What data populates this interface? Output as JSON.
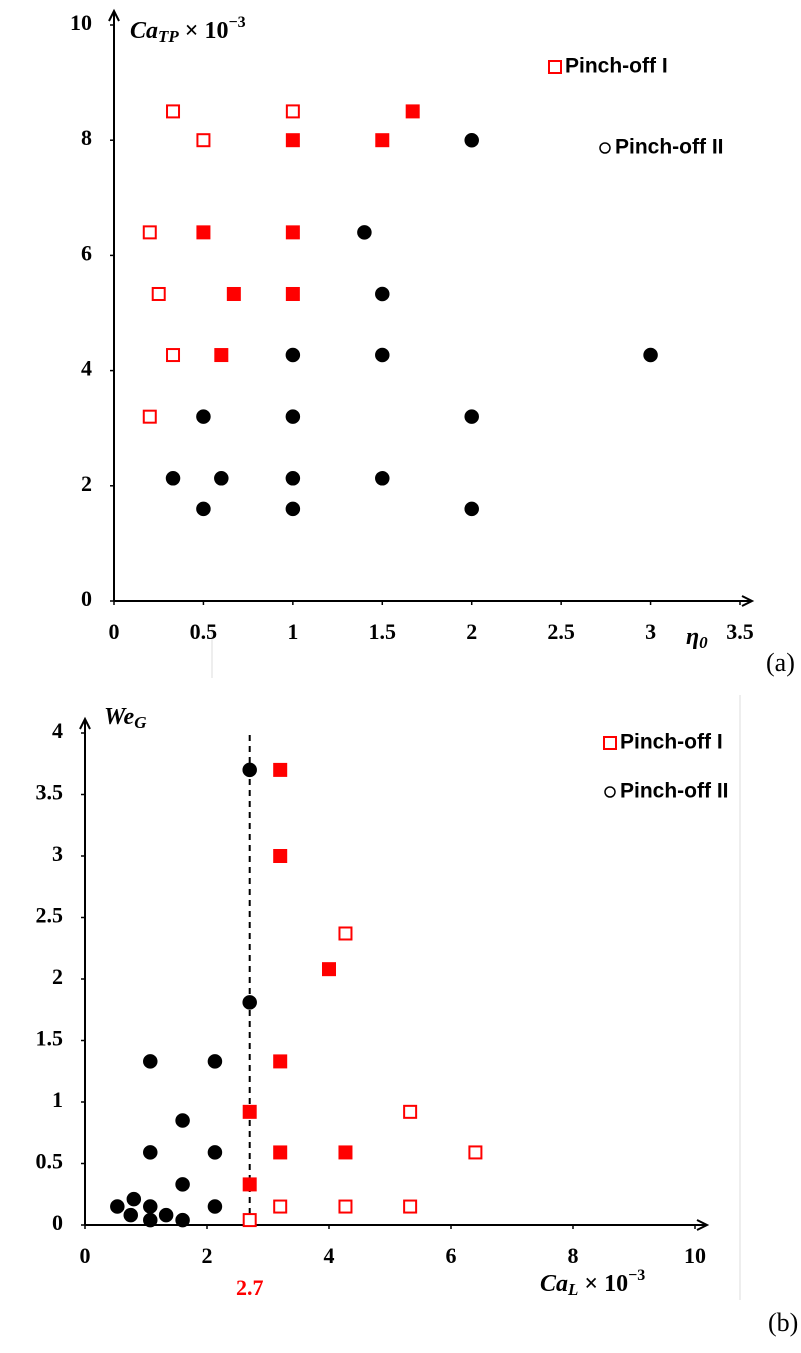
{
  "chart_data": [
    {
      "type": "scatter",
      "panel_label": "(a)",
      "ylabel": {
        "main": "Ca",
        "sub": "TP",
        "times": "× 10",
        "sup": "−3"
      },
      "xlabel": {
        "main": "η",
        "sub": "0"
      },
      "xlim": [
        0,
        3.5
      ],
      "ylim": [
        0,
        10
      ],
      "xticks": [
        0,
        0.5,
        1,
        1.5,
        2,
        2.5,
        3,
        3.5
      ],
      "yticks": [
        0,
        2,
        4,
        6,
        8,
        10
      ],
      "legend": "upper right",
      "series": [
        {
          "name": "Pinch-off I",
          "color": "#ff0000",
          "marker": "square",
          "x": [
            0.33,
            1,
            0.5,
            0.2,
            0.25,
            0.33,
            0.2,
            1.67,
            1,
            1.5,
            0.5,
            1,
            0.67,
            1,
            0.6
          ],
          "values": [
            8.5,
            8.5,
            8,
            6.4,
            5.33,
            4.27,
            3.2,
            8.5,
            8,
            8,
            6.4,
            6.4,
            5.33,
            5.33,
            4.27
          ],
          "filled": [
            false,
            false,
            false,
            false,
            false,
            false,
            false,
            true,
            true,
            true,
            true,
            true,
            true,
            true,
            true
          ]
        },
        {
          "name": "Pinch-off II",
          "color": "#000000",
          "marker": "circle",
          "x": [
            2,
            1.4,
            1.5,
            1,
            1.5,
            3,
            0.5,
            1,
            2,
            0.33,
            0.6,
            1,
            1.5,
            0.5,
            1,
            2
          ],
          "values": [
            8,
            6.4,
            5.33,
            4.27,
            4.27,
            4.27,
            3.2,
            3.2,
            3.2,
            2.13,
            2.13,
            2.13,
            2.13,
            1.6,
            1.6,
            1.6
          ],
          "filled": [
            true,
            true,
            true,
            true,
            true,
            true,
            true,
            true,
            true,
            true,
            true,
            true,
            true,
            true,
            true,
            true
          ]
        }
      ]
    },
    {
      "type": "scatter",
      "panel_label": "(b)",
      "ylabel": {
        "main": "We",
        "sub": "G"
      },
      "xlabel": {
        "main": "Ca",
        "sub": "L",
        "times": "× 10",
        "sup": "−3"
      },
      "xlim": [
        0,
        10
      ],
      "ylim": [
        0,
        4
      ],
      "xticks": [
        0,
        2,
        4,
        6,
        8,
        10
      ],
      "yticks": [
        0,
        0.5,
        1,
        1.5,
        2,
        2.5,
        3,
        3.5,
        4
      ],
      "legend": "upper right",
      "vline": 2.7,
      "vline_color": "#ff0000",
      "series": [
        {
          "name": "Pinch-off I",
          "color": "#ff0000",
          "marker": "square",
          "x": [
            3.2,
            3.2,
            4.27,
            4.0,
            3.2,
            2.7,
            5.33,
            3.2,
            4.27,
            6.4,
            2.7,
            2.7,
            3.2,
            4.27,
            5.33
          ],
          "values": [
            3.7,
            3.0,
            2.37,
            2.08,
            1.33,
            0.92,
            0.92,
            0.59,
            0.59,
            0.59,
            0.33,
            0.04,
            0.15,
            0.15,
            0.15
          ],
          "filled": [
            true,
            true,
            false,
            true,
            true,
            true,
            false,
            true,
            true,
            false,
            true,
            false,
            false,
            false,
            false
          ]
        },
        {
          "name": "Pinch-off II",
          "color": "#000000",
          "marker": "circle",
          "x": [
            2.7,
            2.7,
            1.07,
            2.13,
            1.6,
            1.07,
            2.13,
            1.6,
            0.53,
            0.8,
            0.75,
            1.07,
            1.07,
            1.33,
            1.6,
            2.13
          ],
          "values": [
            3.7,
            1.81,
            1.33,
            1.33,
            0.85,
            0.59,
            0.59,
            0.33,
            0.15,
            0.21,
            0.08,
            0.15,
            0.04,
            0.08,
            0.04,
            0.15
          ],
          "filled": [
            true,
            true,
            true,
            true,
            true,
            true,
            true,
            true,
            true,
            true,
            true,
            true,
            true,
            true,
            true,
            true
          ]
        }
      ]
    }
  ]
}
